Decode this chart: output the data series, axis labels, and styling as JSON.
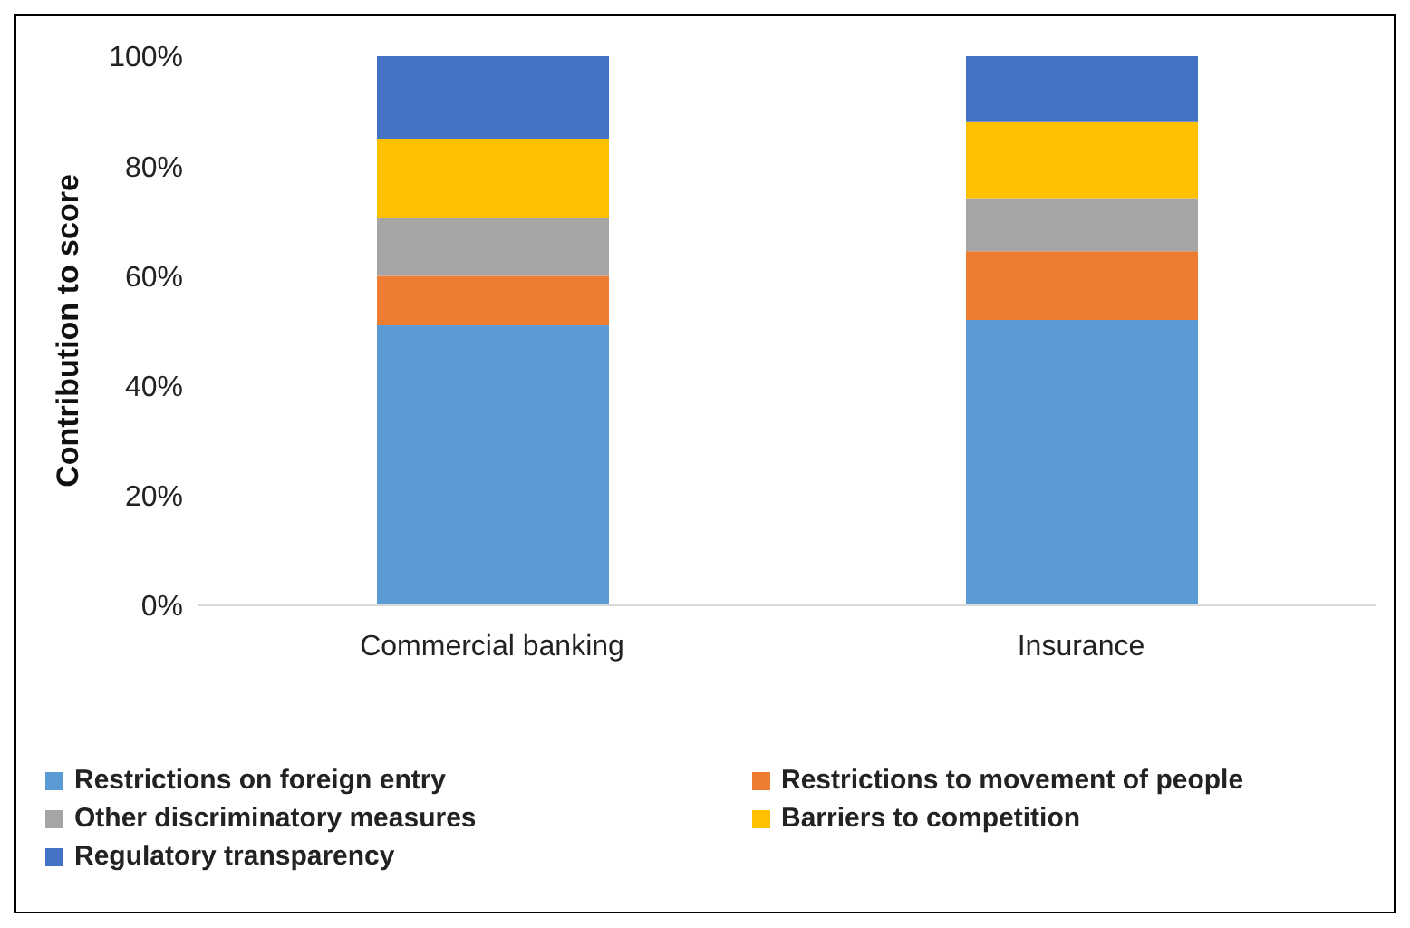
{
  "chart_data": {
    "type": "bar",
    "stacked": true,
    "ylabel": "Contribution to score",
    "categories": [
      "Commercial banking",
      "Insurance"
    ],
    "series": [
      {
        "name": "Restrictions on foreign entry",
        "color": "#5b9bd5",
        "values": [
          51,
          52
        ]
      },
      {
        "name": "Restrictions to movement of people",
        "color": "#ed7d31",
        "values": [
          9,
          12.5
        ]
      },
      {
        "name": "Other discriminatory measures",
        "color": "#a5a5a5",
        "values": [
          10.5,
          9.5
        ]
      },
      {
        "name": "Barriers to competition",
        "color": "#ffc000",
        "values": [
          14.5,
          14
        ]
      },
      {
        "name": "Regulatory transparency",
        "color": "#4472c4",
        "values": [
          15,
          12
        ]
      }
    ],
    "ylim": [
      0,
      100
    ],
    "yticks": [
      {
        "value": 0,
        "label": "0%"
      },
      {
        "value": 20,
        "label": "20%"
      },
      {
        "value": 40,
        "label": "40%"
      },
      {
        "value": 60,
        "label": "60%"
      },
      {
        "value": 80,
        "label": "80%"
      },
      {
        "value": 100,
        "label": "100%"
      }
    ],
    "grid": false,
    "legend": "bottom"
  }
}
